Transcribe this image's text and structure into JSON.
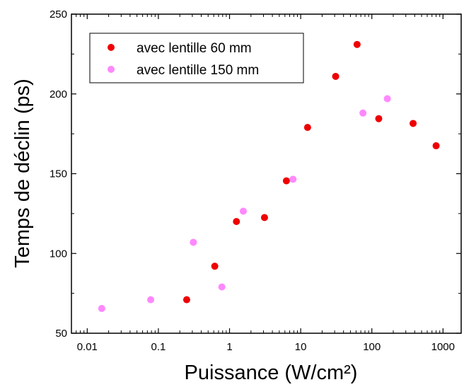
{
  "chart_data": {
    "type": "scatter",
    "xlabel": "Puissance (W/cm²)",
    "ylabel": "Temps de déclin (ps)",
    "x_scale": "log",
    "xlim": [
      0.006,
      1800
    ],
    "ylim": [
      50,
      250
    ],
    "x_ticks": [
      {
        "value": 0.01,
        "label": "0.01"
      },
      {
        "value": 0.1,
        "label": "0.1"
      },
      {
        "value": 1,
        "label": "1"
      },
      {
        "value": 10,
        "label": "10"
      },
      {
        "value": 100,
        "label": "100"
      },
      {
        "value": 1000,
        "label": "1000"
      }
    ],
    "y_ticks": [
      {
        "value": 50,
        "label": "50"
      },
      {
        "value": 100,
        "label": "100"
      },
      {
        "value": 150,
        "label": "150"
      },
      {
        "value": 200,
        "label": "200"
      },
      {
        "value": 250,
        "label": "250"
      }
    ],
    "legend_position": "top-left",
    "grid": false,
    "series": [
      {
        "name": "avec lentille 60 mm",
        "color": "#ee0000",
        "points": [
          {
            "x": 0.25,
            "y": 71
          },
          {
            "x": 0.62,
            "y": 92
          },
          {
            "x": 1.25,
            "y": 120
          },
          {
            "x": 3.1,
            "y": 122.5
          },
          {
            "x": 6.3,
            "y": 145.5
          },
          {
            "x": 12.5,
            "y": 179
          },
          {
            "x": 31,
            "y": 211
          },
          {
            "x": 62,
            "y": 231
          },
          {
            "x": 125,
            "y": 184.5
          },
          {
            "x": 380,
            "y": 181.5
          },
          {
            "x": 800,
            "y": 167.5
          }
        ]
      },
      {
        "name": "avec lentille 150 mm",
        "color": "#ff88ff",
        "points": [
          {
            "x": 0.016,
            "y": 65.5
          },
          {
            "x": 0.078,
            "y": 71
          },
          {
            "x": 0.31,
            "y": 107
          },
          {
            "x": 0.78,
            "y": 79
          },
          {
            "x": 1.56,
            "y": 126.5
          },
          {
            "x": 7.8,
            "y": 146.5
          },
          {
            "x": 75,
            "y": 188
          },
          {
            "x": 165,
            "y": 197
          }
        ]
      }
    ]
  }
}
